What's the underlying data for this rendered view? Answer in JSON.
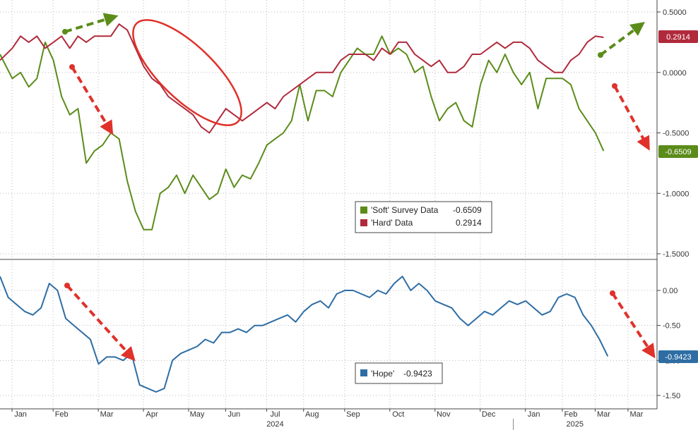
{
  "chart_data": [
    {
      "type": "line",
      "panel": "top",
      "ylim": [
        -1.5,
        0.5
      ],
      "y_ticks": [
        "0.5000",
        "0.0000",
        "-0.5000",
        "-1.0000",
        "-1.5000"
      ],
      "grid": true,
      "legend_position": "lower-right",
      "series": [
        {
          "name": "'Soft' Survey Data",
          "color": "#5b8c1a",
          "last_value": "-0.6509",
          "x": [
            0,
            0.3,
            0.5,
            0.7,
            0.9,
            1.1,
            1.3,
            1.5,
            1.7,
            1.9,
            2.1,
            2.3,
            2.5,
            2.7,
            2.9,
            3.1,
            3.3,
            3.5,
            3.7,
            3.9,
            4.1,
            4.3,
            4.5,
            4.7,
            4.9,
            5.1,
            5.3,
            5.5,
            5.7,
            5.9,
            6.1,
            6.3,
            6.5,
            6.7,
            6.9,
            7.1,
            7.3,
            7.5,
            7.7,
            7.9,
            8.1,
            8.3,
            8.5,
            8.7,
            8.9,
            9.1,
            9.3,
            9.5,
            9.7,
            9.9,
            10.1,
            10.3,
            10.5,
            10.7,
            10.9,
            11.1,
            11.3,
            11.5,
            11.7,
            11.9,
            12.1,
            12.3,
            12.5,
            12.7,
            12.9,
            13.1,
            13.3,
            13.5,
            13.7,
            13.9,
            14.1,
            14.3,
            14.5,
            14.7
          ],
          "y": [
            0.15,
            -0.05,
            0.0,
            -0.12,
            -0.05,
            0.25,
            0.1,
            -0.2,
            -0.35,
            -0.3,
            -0.75,
            -0.65,
            -0.6,
            -0.5,
            -0.55,
            -0.9,
            -1.15,
            -1.3,
            -1.3,
            -1.0,
            -0.95,
            -0.85,
            -1.0,
            -0.85,
            -0.95,
            -1.05,
            -1.0,
            -0.8,
            -0.95,
            -0.85,
            -0.88,
            -0.75,
            -0.6,
            -0.55,
            -0.5,
            -0.4,
            -0.1,
            -0.4,
            -0.15,
            -0.15,
            -0.2,
            0.0,
            0.1,
            0.2,
            0.15,
            0.15,
            0.3,
            0.15,
            0.2,
            0.15,
            0.0,
            0.05,
            -0.2,
            -0.4,
            -0.3,
            -0.25,
            -0.4,
            -0.45,
            -0.1,
            0.1,
            0.0,
            0.15,
            0.0,
            -0.1,
            0.0,
            -0.3,
            -0.05,
            -0.05,
            -0.05,
            -0.1,
            -0.3,
            -0.4,
            -0.5,
            -0.65
          ]
        },
        {
          "name": "'Hard' Data",
          "color": "#b02a3c",
          "last_value": "0.2914",
          "x": [
            0,
            0.3,
            0.5,
            0.7,
            0.9,
            1.1,
            1.3,
            1.5,
            1.7,
            1.9,
            2.1,
            2.3,
            2.5,
            2.7,
            2.9,
            3.1,
            3.3,
            3.5,
            3.7,
            3.9,
            4.1,
            4.3,
            4.5,
            4.7,
            4.9,
            5.1,
            5.3,
            5.5,
            5.7,
            5.9,
            6.1,
            6.3,
            6.5,
            6.7,
            6.9,
            7.1,
            7.3,
            7.5,
            7.7,
            7.9,
            8.1,
            8.3,
            8.5,
            8.7,
            8.9,
            9.1,
            9.3,
            9.5,
            9.7,
            9.9,
            10.1,
            10.3,
            10.5,
            10.7,
            10.9,
            11.1,
            11.3,
            11.5,
            11.7,
            11.9,
            12.1,
            12.3,
            12.5,
            12.7,
            12.9,
            13.1,
            13.3,
            13.5,
            13.7,
            13.9,
            14.1,
            14.3,
            14.5,
            14.7
          ],
          "y": [
            0.1,
            0.2,
            0.3,
            0.25,
            0.3,
            0.2,
            0.25,
            0.3,
            0.2,
            0.3,
            0.25,
            0.3,
            0.3,
            0.3,
            0.4,
            0.35,
            0.2,
            0.05,
            -0.05,
            -0.1,
            -0.2,
            -0.25,
            -0.3,
            -0.35,
            -0.45,
            -0.5,
            -0.4,
            -0.3,
            -0.35,
            -0.4,
            -0.35,
            -0.3,
            -0.25,
            -0.3,
            -0.2,
            -0.15,
            -0.1,
            -0.05,
            0.0,
            0.0,
            0.0,
            0.1,
            0.15,
            0.15,
            0.15,
            0.1,
            0.2,
            0.15,
            0.25,
            0.25,
            0.15,
            0.1,
            0.05,
            0.1,
            0.0,
            0.0,
            0.05,
            0.15,
            0.15,
            0.2,
            0.25,
            0.2,
            0.25,
            0.25,
            0.2,
            0.1,
            0.05,
            0.0,
            0.0,
            0.1,
            0.15,
            0.25,
            0.3,
            0.29
          ]
        }
      ]
    },
    {
      "type": "line",
      "panel": "bottom",
      "ylim": [
        -1.5,
        0.0
      ],
      "y_ticks": [
        "0.00",
        "-0.50",
        "-1.00",
        "-1.50"
      ],
      "grid": true,
      "legend_position": "lower-right",
      "series": [
        {
          "name": "'Hope'",
          "color": "#2e6da4",
          "last_value": "-0.9423",
          "x": [
            0,
            0.2,
            0.4,
            0.6,
            0.8,
            1.0,
            1.2,
            1.4,
            1.6,
            1.8,
            2.0,
            2.2,
            2.4,
            2.6,
            2.8,
            3.0,
            3.2,
            3.4,
            3.6,
            3.8,
            4.0,
            4.2,
            4.4,
            4.6,
            4.8,
            5.0,
            5.2,
            5.4,
            5.6,
            5.8,
            6.0,
            6.2,
            6.4,
            6.6,
            6.8,
            7.0,
            7.2,
            7.4,
            7.6,
            7.8,
            8.0,
            8.2,
            8.4,
            8.6,
            8.8,
            9.0,
            9.2,
            9.4,
            9.6,
            9.8,
            10.0,
            10.2,
            10.4,
            10.6,
            10.8,
            11.0,
            11.2,
            11.4,
            11.6,
            11.8,
            12.0,
            12.2,
            12.4,
            12.6,
            12.8,
            13.0,
            13.2,
            13.4,
            13.6,
            13.8,
            14.0,
            14.2,
            14.4,
            14.6,
            14.8
          ],
          "y": [
            0.2,
            -0.1,
            -0.2,
            -0.3,
            -0.35,
            -0.25,
            0.1,
            0.0,
            -0.4,
            -0.5,
            -0.6,
            -0.7,
            -1.05,
            -0.95,
            -0.95,
            -1.0,
            -0.9,
            -1.35,
            -1.4,
            -1.45,
            -1.4,
            -1.0,
            -0.9,
            -0.85,
            -0.8,
            -0.7,
            -0.75,
            -0.6,
            -0.6,
            -0.55,
            -0.6,
            -0.5,
            -0.5,
            -0.45,
            -0.4,
            -0.35,
            -0.45,
            -0.3,
            -0.2,
            -0.15,
            -0.25,
            -0.05,
            0.0,
            0.0,
            -0.05,
            -0.1,
            0.0,
            -0.05,
            0.1,
            0.2,
            0.0,
            0.1,
            0.0,
            -0.15,
            -0.2,
            -0.25,
            -0.4,
            -0.5,
            -0.4,
            -0.3,
            -0.35,
            -0.25,
            -0.15,
            -0.2,
            -0.15,
            -0.25,
            -0.35,
            -0.3,
            -0.1,
            -0.05,
            -0.1,
            -0.35,
            -0.5,
            -0.7,
            -0.94
          ]
        }
      ]
    }
  ],
  "x_axis": {
    "month_labels": [
      "Jan",
      "Feb",
      "Mar",
      "Apr",
      "May",
      "Jun",
      "Jul",
      "Aug",
      "Sep",
      "Oct",
      "Nov",
      "Dec",
      "Jan",
      "Feb",
      "Mar",
      "Mar"
    ],
    "month_positions": [
      0.5,
      1.5,
      2.6,
      3.7,
      4.8,
      5.7,
      6.7,
      7.6,
      8.6,
      9.7,
      10.8,
      11.9,
      13.0,
      13.9,
      14.7,
      15.5
    ],
    "year_labels": [
      {
        "label": "2024",
        "pos": 6.7
      },
      {
        "label": "2025",
        "pos": 14.0
      }
    ]
  },
  "colors": {
    "annotation_red": "#e0312b",
    "annotation_green": "#5b8c1a",
    "grid": "#bbbbbb",
    "hope_tag": "#2e6da4"
  }
}
